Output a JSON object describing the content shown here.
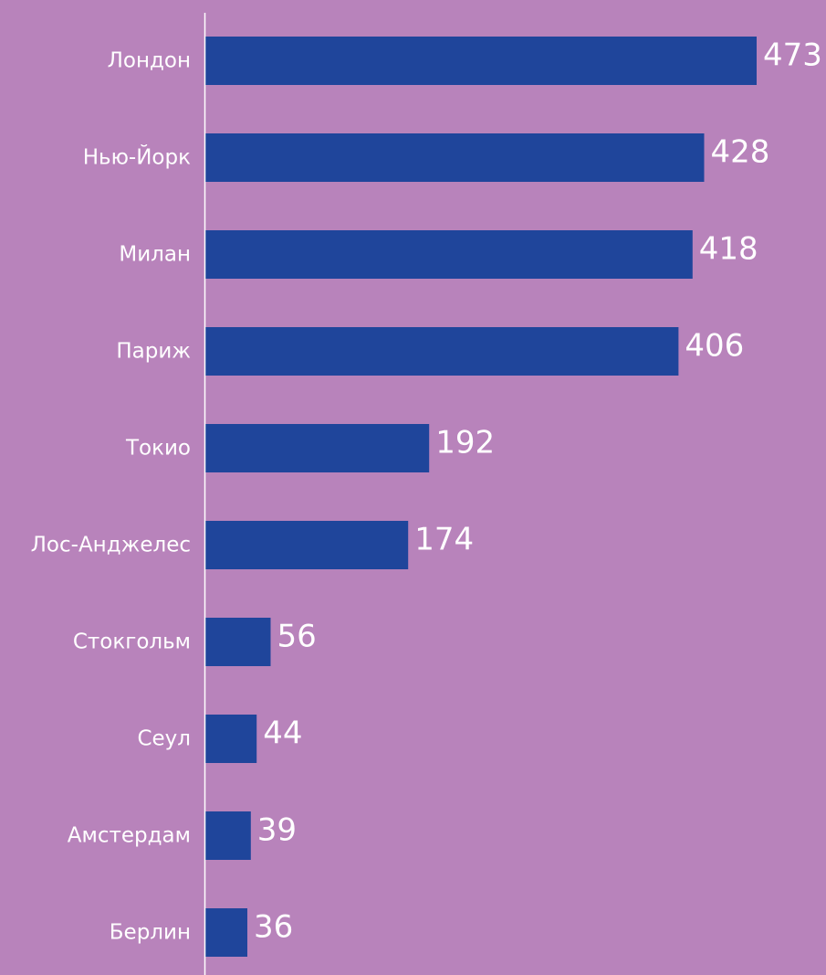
{
  "colors": {
    "background": "#B883BB",
    "bar": "#1F459B",
    "axis": "#FFFFFF",
    "text": "#FFFFFF"
  },
  "chart_data": {
    "type": "bar",
    "orientation": "horizontal",
    "title": "",
    "xlabel": "",
    "ylabel": "",
    "grid": false,
    "xlim": [
      0,
      473
    ],
    "categories": [
      "Лондон",
      "Нью-Йорк",
      "Милан",
      "Париж",
      "Токио",
      "Лос-Анджелес",
      "Стокгольм",
      "Сеул",
      "Амстердам",
      "Берлин"
    ],
    "values": [
      473,
      428,
      418,
      406,
      192,
      174,
      56,
      44,
      39,
      36
    ]
  }
}
